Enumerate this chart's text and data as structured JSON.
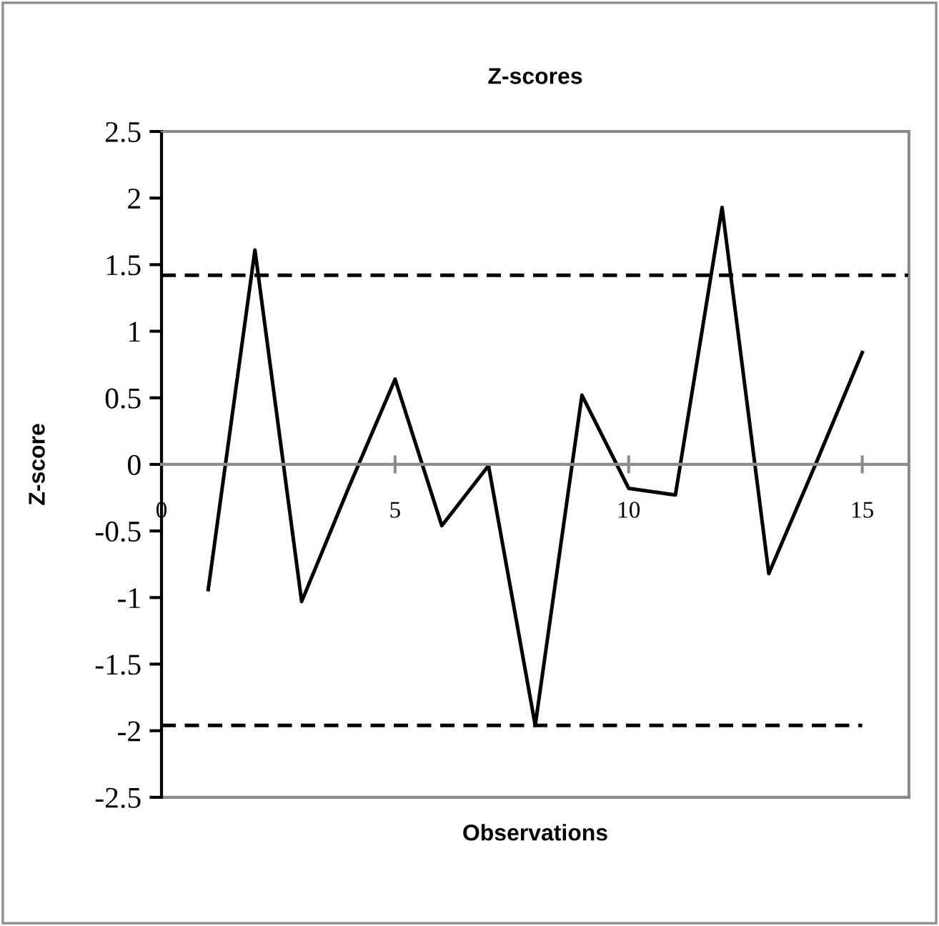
{
  "chart_data": {
    "type": "line",
    "title": "Z-scores",
    "xlabel": "Observations",
    "ylabel": "Z-score",
    "x": [
      1,
      2,
      3,
      4,
      5,
      6,
      7,
      8,
      9,
      10,
      11,
      12,
      13,
      14,
      15
    ],
    "series": [
      {
        "color": "#000000",
        "values": [
          -0.94,
          1.61,
          -1.03,
          -0.18,
          0.64,
          -0.46,
          -0.01,
          -1.96,
          0.52,
          -0.18,
          -0.23,
          1.93,
          -0.82,
          0.0,
          0.84
        ]
      },
      {
        "color": "#000000",
        "x": [
          0,
          16
        ],
        "values": [
          1.42,
          1.42
        ],
        "line_style": "dashed"
      },
      {
        "color": "#000000",
        "x": [
          0,
          15
        ],
        "values": [
          -1.96,
          -1.96
        ],
        "line_style": "dashed"
      }
    ],
    "xlim": [
      0,
      16
    ],
    "xticks": [
      0,
      5,
      10,
      15
    ],
    "ylim": [
      -2.5,
      2.5
    ],
    "yticks": [
      -2.5,
      -2,
      -1.5,
      -1,
      -0.5,
      0,
      0.5,
      1,
      1.5,
      2,
      2.5
    ],
    "grid": false,
    "legend": false,
    "marker": "none",
    "line_style": "solid"
  }
}
